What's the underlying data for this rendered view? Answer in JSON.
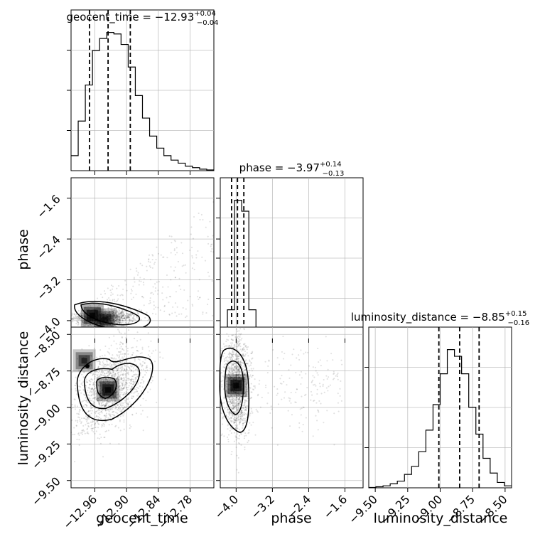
{
  "chart_data": {
    "type": "corner",
    "parameters": [
      {
        "name": "geocent_time",
        "label": "geocent_time",
        "title": {
          "prefix": "geocent_time = ",
          "median": "−12.93",
          "plus": "+0.04",
          "minus": "−0.04"
        },
        "range": [
          -13.005,
          -12.735
        ],
        "ticks": [
          -12.96,
          -12.9,
          -12.84,
          -12.78
        ],
        "tick_labels": [
          "−12.96",
          "−12.90",
          "−12.84",
          "−12.78"
        ],
        "quantiles": [
          -12.97,
          -12.935,
          -12.893
        ],
        "hist_values": [
          10,
          33,
          57,
          80,
          88,
          92,
          91,
          84,
          69,
          50,
          35,
          23,
          15,
          10,
          7,
          5,
          3,
          2,
          1,
          0.5
        ]
      },
      {
        "name": "phase",
        "label": "phase",
        "title": {
          "prefix": "phase = ",
          "median": "−3.97",
          "plus": "+0.14",
          "minus": "−0.13"
        },
        "range": [
          -4.35,
          -1.2
        ],
        "ticks": [
          -4.0,
          -3.2,
          -2.4,
          -1.6
        ],
        "tick_labels": [
          "−4.0",
          "−3.2",
          "−2.4",
          "−1.6"
        ],
        "quantiles": [
          -4.1,
          -3.97,
          -3.83
        ],
        "hist_values": [
          5,
          42,
          202,
          186,
          42,
          16,
          7,
          4,
          3,
          2,
          1.5,
          1,
          1,
          0.5,
          0.5,
          0.5,
          0.3,
          0.3,
          0.2,
          0.1
        ]
      },
      {
        "name": "luminosity_distance",
        "label": "luminosity_distance",
        "title": {
          "prefix": "luminosity_distance = ",
          "median": "−8.85",
          "plus": "+0.15",
          "minus": "−0.16"
        },
        "range": [
          -9.55,
          -8.45
        ],
        "ticks": [
          -9.5,
          -9.25,
          -9.0,
          -8.75,
          -8.5
        ],
        "tick_labels": [
          "−9.50",
          "−9.25",
          "−9.00",
          "−8.75",
          "−8.50"
        ],
        "quantiles": [
          -9.01,
          -8.85,
          -8.7
        ],
        "hist_values": [
          0.3,
          0.8,
          1.5,
          3,
          5,
          10,
          16,
          27,
          43,
          62,
          85,
          103,
          98,
          85,
          60,
          40,
          22,
          11,
          4,
          1.5
        ]
      }
    ],
    "pairs": [
      {
        "x_param": 0,
        "y_param": 1,
        "peak": [
          -12.94,
          -3.97
        ],
        "density_peaks": [
          [
            -12.965,
            -3.9
          ],
          [
            -12.94,
            -3.98
          ]
        ]
      },
      {
        "x_param": 0,
        "y_param": 2,
        "peak": [
          -12.935,
          -8.88
        ],
        "density_peaks": [
          [
            -12.935,
            -8.88
          ],
          [
            -12.98,
            -8.68
          ]
        ]
      },
      {
        "x_param": 1,
        "y_param": 2,
        "peak": [
          -4.0,
          -8.85
        ],
        "density_peaks": [
          [
            -4.0,
            -8.85
          ]
        ]
      }
    ],
    "grid": true,
    "quantile_levels": [
      0.16,
      0.5,
      0.84
    ],
    "colors": {
      "line": "#000000",
      "grid": "#b0b0b0",
      "background": "#ffffff"
    }
  }
}
